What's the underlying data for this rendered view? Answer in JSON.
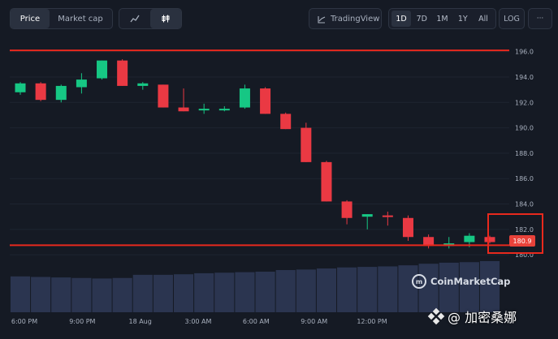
{
  "toolbar": {
    "price_tab": "Price",
    "market_cap_tab": "Market cap",
    "line_icon": "line-chart-icon",
    "candle_icon": "candlestick-icon",
    "tradingview_icon": "tradingview-icon",
    "tradingview_label": "TradingView",
    "timeframes": [
      "1D",
      "7D",
      "1M",
      "1Y",
      "All"
    ],
    "active_timeframe": "1D",
    "log_label": "LOG",
    "more_label": "···"
  },
  "price_badge": "180.9",
  "watermark": "CoinMarketCap",
  "credit_text": "@ 加密桑娜",
  "colors": {
    "up": "#16c784",
    "down": "#ea3943",
    "hline": "#e8291d",
    "volume": "#2b3550",
    "background": "#151a24"
  },
  "chart_data": {
    "type": "candlestick",
    "x_tick_labels": [
      "6:00 PM",
      "9:00 PM",
      "18 Aug",
      "3:00 AM",
      "6:00 AM",
      "9:00 AM",
      "12:00 PM"
    ],
    "y_tick_labels": [
      "196.0",
      "194.0",
      "192.0",
      "190.0",
      "188.0",
      "186.0",
      "184.0",
      "182.0",
      "180.0"
    ],
    "ylim": [
      179.5,
      197.0
    ],
    "horizontal_lines": [
      196.1,
      180.75
    ],
    "candles": [
      {
        "o": 192.8,
        "h": 193.6,
        "l": 192.6,
        "c": 193.5
      },
      {
        "o": 193.5,
        "h": 193.6,
        "l": 192.1,
        "c": 192.2
      },
      {
        "o": 192.2,
        "h": 193.4,
        "l": 192.0,
        "c": 193.3
      },
      {
        "o": 193.2,
        "h": 194.3,
        "l": 192.7,
        "c": 193.8
      },
      {
        "o": 193.9,
        "h": 195.3,
        "l": 193.8,
        "c": 195.3
      },
      {
        "o": 195.3,
        "h": 195.4,
        "l": 193.3,
        "c": 193.3
      },
      {
        "o": 193.3,
        "h": 193.6,
        "l": 193.0,
        "c": 193.5
      },
      {
        "o": 193.4,
        "h": 193.4,
        "l": 191.6,
        "c": 191.6
      },
      {
        "o": 191.6,
        "h": 193.1,
        "l": 191.3,
        "c": 191.3
      },
      {
        "o": 191.4,
        "h": 191.9,
        "l": 191.1,
        "c": 191.5
      },
      {
        "o": 191.4,
        "h": 191.7,
        "l": 191.3,
        "c": 191.5
      },
      {
        "o": 191.6,
        "h": 193.4,
        "l": 191.5,
        "c": 193.1
      },
      {
        "o": 193.1,
        "h": 193.2,
        "l": 191.1,
        "c": 191.1
      },
      {
        "o": 191.1,
        "h": 191.2,
        "l": 189.9,
        "c": 189.9
      },
      {
        "o": 190.0,
        "h": 190.4,
        "l": 187.3,
        "c": 187.3
      },
      {
        "o": 187.3,
        "h": 187.4,
        "l": 184.2,
        "c": 184.2
      },
      {
        "o": 184.2,
        "h": 184.3,
        "l": 182.4,
        "c": 182.9
      },
      {
        "o": 183.0,
        "h": 183.2,
        "l": 182.0,
        "c": 183.2
      },
      {
        "o": 183.1,
        "h": 183.4,
        "l": 182.3,
        "c": 183.0
      },
      {
        "o": 182.9,
        "h": 183.1,
        "l": 181.1,
        "c": 181.4
      },
      {
        "o": 181.4,
        "h": 181.6,
        "l": 180.5,
        "c": 180.7
      },
      {
        "o": 180.7,
        "h": 181.4,
        "l": 180.5,
        "c": 180.9
      },
      {
        "o": 181.0,
        "h": 181.7,
        "l": 180.6,
        "c": 181.5
      },
      {
        "o": 181.4,
        "h": 181.5,
        "l": 180.9,
        "c": 181.0
      }
    ],
    "volume_relative": [
      0.68,
      0.67,
      0.66,
      0.65,
      0.64,
      0.65,
      0.71,
      0.71,
      0.72,
      0.74,
      0.75,
      0.76,
      0.77,
      0.8,
      0.81,
      0.83,
      0.85,
      0.86,
      0.87,
      0.89,
      0.92,
      0.94,
      0.95,
      0.97
    ]
  }
}
